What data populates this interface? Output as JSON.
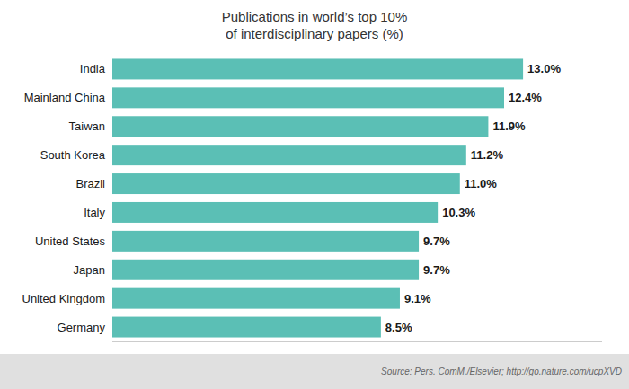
{
  "chart_data": {
    "type": "bar",
    "orientation": "horizontal",
    "title": "Publications in world’s top 10%\nof interdisciplinary papers (%)",
    "categories": [
      "Germany",
      "United Kingdom",
      "Japan",
      "United States",
      "Italy",
      "Brazil",
      "South Korea",
      "Taiwan",
      "Mainland China",
      "India"
    ],
    "values": [
      8.5,
      9.1,
      9.7,
      9.7,
      10.3,
      11.0,
      11.2,
      11.9,
      12.4,
      13.0
    ],
    "value_labels": [
      "8.5%",
      "9.1%",
      "9.7%",
      "9.7%",
      "10.3%",
      "11.0%",
      "11.2%",
      "11.9%",
      "12.4%",
      "13.0%"
    ],
    "data_labels": true,
    "color": "#5bbfb5",
    "xlim": [
      0,
      15.5
    ],
    "tick_labels": "y",
    "grid": false,
    "annotations": [
      "Source: Pers. ComM./Elsevier; http://go.nature.com/ucpXVD"
    ]
  }
}
